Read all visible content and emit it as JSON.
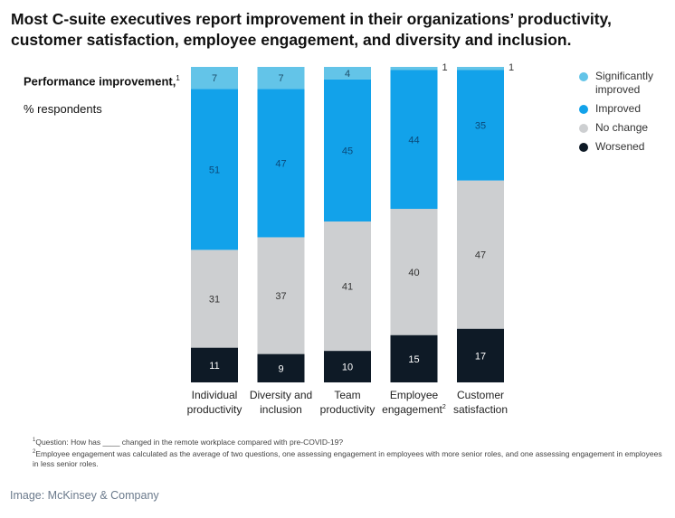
{
  "title": "Most C-suite executives report improvement in their organizations’ productivity, customer satisfaction, employee engagement, and diversity and inclusion.",
  "y_label": {
    "title": "Performance improvement,",
    "title_footnote_mark": "1",
    "subtitle": "% respondents"
  },
  "legend": [
    {
      "label": "Significantly improved",
      "color": "#63c4e8"
    },
    {
      "label": "Improved",
      "color": "#12a2ea"
    },
    {
      "label": "No change",
      "color": "#cdcfd1"
    },
    {
      "label": "Worsened",
      "color": "#0e1a26"
    }
  ],
  "footnotes": [
    {
      "mark": "1",
      "text": "Question: How has ____ changed in the remote workplace compared with pre-COVID-19?"
    },
    {
      "mark": "2",
      "text": "Employee engagement was calculated as the average of two questions, one assessing engagement in employees with more senior roles, and one assessing engagement in employees in less senior roles."
    }
  ],
  "source": "Image: McKinsey & Company",
  "chart_data": {
    "type": "bar",
    "stacked": true,
    "categories": [
      [
        "Individual",
        "productivity"
      ],
      [
        "Diversity and",
        "inclusion"
      ],
      [
        "Team",
        "productivity"
      ],
      [
        "Employee",
        "engagement"
      ],
      [
        "Customer",
        "satisfaction"
      ]
    ],
    "category_footnote_marks": [
      "",
      "",
      "",
      "2",
      ""
    ],
    "series": [
      {
        "name": "Worsened",
        "values": [
          11,
          9,
          10,
          15,
          17
        ],
        "color": "#0e1a26",
        "label_color": "#ffffff"
      },
      {
        "name": "No change",
        "values": [
          31,
          37,
          41,
          40,
          47
        ],
        "color": "#cdcfd1",
        "label_color": "#333333"
      },
      {
        "name": "Improved",
        "values": [
          51,
          47,
          45,
          44,
          35
        ],
        "color": "#12a2ea",
        "label_color": "#0b4a7a"
      },
      {
        "name": "Significantly improved",
        "values": [
          7,
          7,
          4,
          1,
          1
        ],
        "color": "#63c4e8",
        "label_color": "#1d4f6b"
      }
    ],
    "ylim": [
      0,
      100
    ],
    "grid": false,
    "legend_position": "right"
  }
}
